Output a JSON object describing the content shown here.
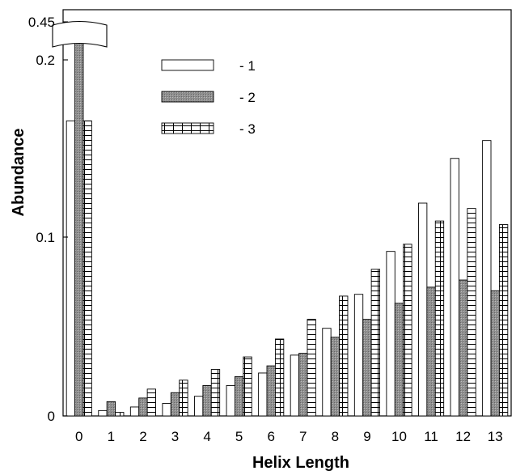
{
  "chart_data": {
    "type": "bar",
    "xlabel": "Helix Length",
    "ylabel": "Abundance",
    "categories": [
      "0",
      "1",
      "2",
      "3",
      "4",
      "5",
      "6",
      "7",
      "8",
      "9",
      "10",
      "11",
      "12",
      "13"
    ],
    "y_ticks": [
      {
        "value": 0,
        "label": "0"
      },
      {
        "value": 0.1,
        "label": "0.1"
      },
      {
        "value": 0.2,
        "label": "0.2"
      },
      {
        "value": 0.45,
        "label": "0.45"
      }
    ],
    "ylim": [
      0,
      0.45
    ],
    "axis_break": {
      "between": [
        0.2,
        0.45
      ]
    },
    "grid": false,
    "legend_position": "top-center",
    "series": [
      {
        "name": "1",
        "pattern": "open",
        "values": [
          0.165,
          0.003,
          0.005,
          0.007,
          0.011,
          0.017,
          0.024,
          0.034,
          0.049,
          0.068,
          0.092,
          0.119,
          0.144,
          0.154
        ]
      },
      {
        "name": "2",
        "pattern": "gray",
        "values": [
          0.45,
          0.008,
          0.01,
          0.013,
          0.017,
          0.022,
          0.028,
          0.035,
          0.044,
          0.054,
          0.063,
          0.072,
          0.076,
          0.07
        ]
      },
      {
        "name": "3",
        "pattern": "grid",
        "values": [
          0.165,
          0.002,
          0.015,
          0.02,
          0.026,
          0.033,
          0.043,
          0.054,
          0.067,
          0.082,
          0.096,
          0.109,
          0.116,
          0.107
        ]
      }
    ],
    "legend": [
      {
        "pattern": "open",
        "label": "-  1"
      },
      {
        "pattern": "gray",
        "label": "-  2"
      },
      {
        "pattern": "grid",
        "label": "-  3"
      }
    ]
  }
}
